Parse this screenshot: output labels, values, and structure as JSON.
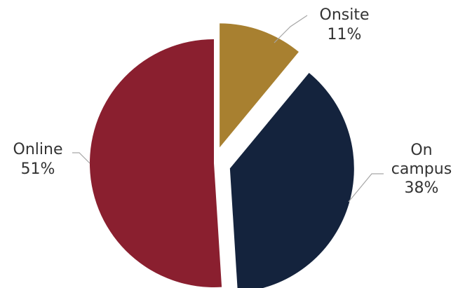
{
  "chart_data": {
    "type": "pie",
    "title": "",
    "slices": [
      {
        "name": "Onsite",
        "line1": "Onsite",
        "line2": "",
        "pct_label": "11%",
        "value": 11,
        "color": "#A88030",
        "exploded": true
      },
      {
        "name": "On campus",
        "line1": "On",
        "line2": "campus",
        "pct_label": "38%",
        "value": 38,
        "color": "#14233D",
        "exploded": true
      },
      {
        "name": "Online",
        "line1": "Online",
        "line2": "",
        "pct_label": "51%",
        "value": 51,
        "color": "#8A1F2F",
        "exploded": false
      }
    ]
  }
}
